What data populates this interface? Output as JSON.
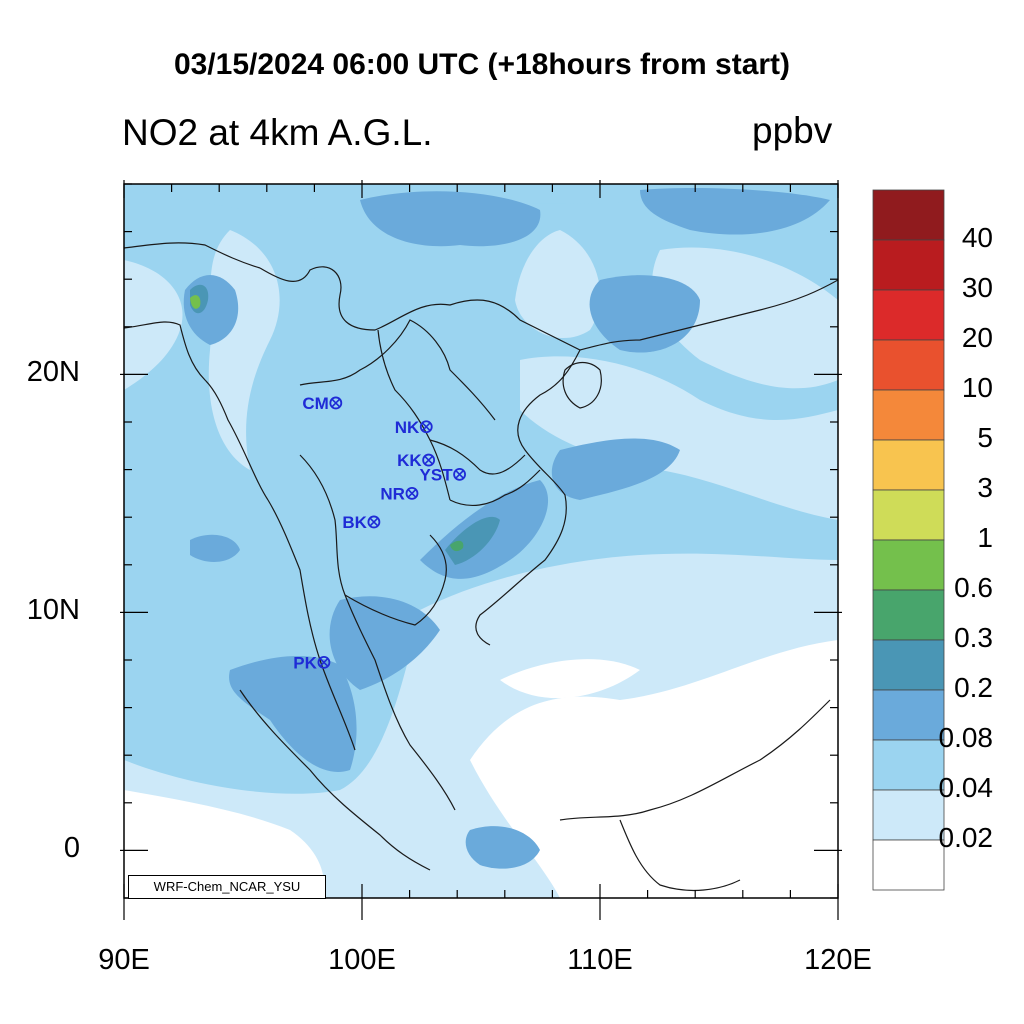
{
  "title": "03/15/2024 06:00 UTC (+18hours from start)",
  "subtitle": "NO2 at 4km A.G.L.",
  "units": "ppbv",
  "credit": "WRF-Chem_NCAR_YSU",
  "x_axis": {
    "labels": [
      "90E",
      "100E",
      "110E",
      "120E"
    ],
    "values": [
      90,
      100,
      110,
      120
    ]
  },
  "y_axis": {
    "labels": [
      "20N",
      "10N",
      "0"
    ],
    "values": [
      20,
      10,
      0
    ]
  },
  "extent": {
    "lon": [
      90,
      120
    ],
    "lat": [
      -2,
      28
    ]
  },
  "colorbar": {
    "labels": [
      "40",
      "30",
      "20",
      "10",
      "5",
      "3",
      "1",
      "0.6",
      "0.3",
      "0.2",
      "0.08",
      "0.04",
      "0.02"
    ],
    "colors_top_to_bottom": [
      "#901b1e",
      "#b91c1f",
      "#dc2a2a",
      "#e9512e",
      "#f4883a",
      "#f8c44f",
      "#cfdc58",
      "#74c04c",
      "#48a56c",
      "#4a96b5",
      "#6aaadb",
      "#9bd4f0",
      "#cde9f9",
      "#ffffff"
    ]
  },
  "stations": [
    {
      "code": "CM",
      "lon": 98.9,
      "lat": 18.8
    },
    {
      "code": "NK",
      "lon": 102.7,
      "lat": 17.8
    },
    {
      "code": "KK",
      "lon": 102.8,
      "lat": 16.4
    },
    {
      "code": "YST",
      "lon": 104.1,
      "lat": 15.8
    },
    {
      "code": "NR",
      "lon": 102.1,
      "lat": 15.0
    },
    {
      "code": "BK",
      "lon": 100.5,
      "lat": 13.8
    },
    {
      "code": "PK",
      "lon": 98.4,
      "lat": 7.9
    }
  ]
}
